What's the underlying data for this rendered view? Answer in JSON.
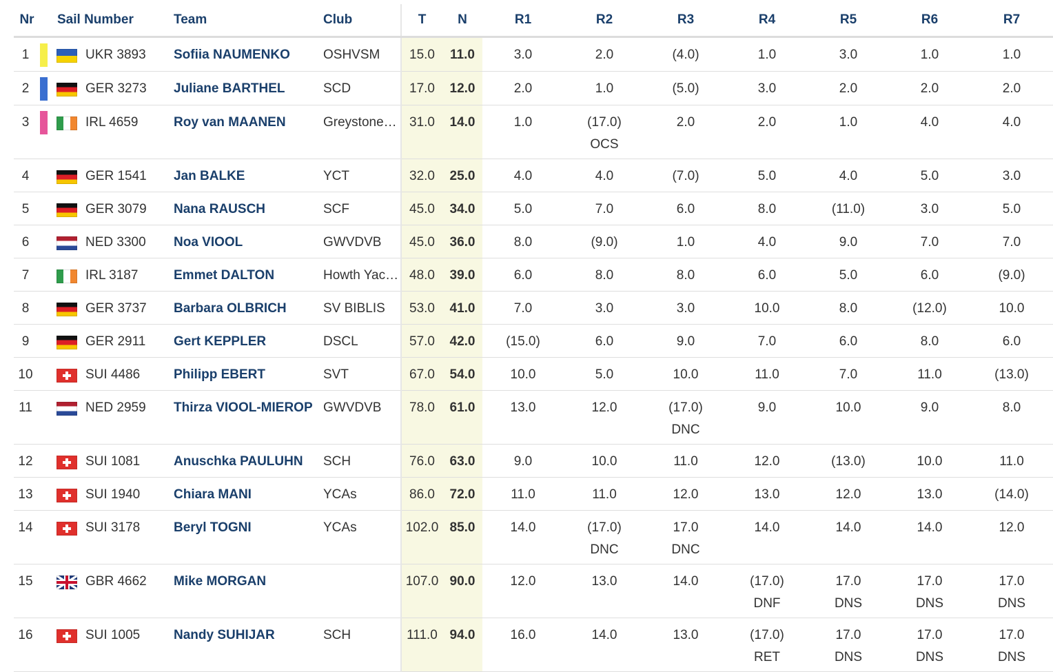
{
  "headers": {
    "nr": "Nr",
    "sail": "Sail Number",
    "team": "Team",
    "club": "Club",
    "total": "T",
    "net": "N",
    "races": [
      "R1",
      "R2",
      "R3",
      "R4",
      "R5",
      "R6",
      "R7"
    ]
  },
  "colors": {
    "yellow": "#f6ef4a",
    "blue": "#3a6fd0",
    "pink": "#e6559a",
    "team_text": "#1a3f6b",
    "highlight": "#f8f8e2"
  },
  "rows": [
    {
      "nr": "1",
      "bar": "#f6ef4a",
      "flag": "ukr",
      "sail": "UKR 3893",
      "team": "Sofiia NAUMENKO",
      "club": "OSHVSM",
      "total": "15.0",
      "net": "11.0",
      "races": [
        {
          "v": "3.0"
        },
        {
          "v": "2.0"
        },
        {
          "v": "(4.0)"
        },
        {
          "v": "1.0"
        },
        {
          "v": "3.0"
        },
        {
          "v": "1.0"
        },
        {
          "v": "1.0"
        }
      ]
    },
    {
      "nr": "2",
      "bar": "#3a6fd0",
      "flag": "ger",
      "sail": "GER 3273",
      "team": "Juliane BARTHEL",
      "club": "SCD",
      "total": "17.0",
      "net": "12.0",
      "races": [
        {
          "v": "2.0"
        },
        {
          "v": "1.0"
        },
        {
          "v": "(5.0)"
        },
        {
          "v": "3.0"
        },
        {
          "v": "2.0"
        },
        {
          "v": "2.0"
        },
        {
          "v": "2.0"
        }
      ]
    },
    {
      "nr": "3",
      "bar": "#e6559a",
      "flag": "irl",
      "sail": "IRL 4659",
      "team": "Roy van MAANEN",
      "club": "Greystones Sailing Club",
      "total": "31.0",
      "net": "14.0",
      "races": [
        {
          "v": "1.0"
        },
        {
          "v": "(17.0)",
          "c": "OCS"
        },
        {
          "v": "2.0"
        },
        {
          "v": "2.0"
        },
        {
          "v": "1.0"
        },
        {
          "v": "4.0"
        },
        {
          "v": "4.0"
        }
      ]
    },
    {
      "nr": "4",
      "bar": "",
      "flag": "ger",
      "sail": "GER 1541",
      "team": "Jan BALKE",
      "club": "YCT",
      "total": "32.0",
      "net": "25.0",
      "races": [
        {
          "v": "4.0"
        },
        {
          "v": "4.0"
        },
        {
          "v": "(7.0)"
        },
        {
          "v": "5.0"
        },
        {
          "v": "4.0"
        },
        {
          "v": "5.0"
        },
        {
          "v": "3.0"
        }
      ]
    },
    {
      "nr": "5",
      "bar": "",
      "flag": "ger",
      "sail": "GER 3079",
      "team": "Nana RAUSCH",
      "club": "SCF",
      "total": "45.0",
      "net": "34.0",
      "races": [
        {
          "v": "5.0"
        },
        {
          "v": "7.0"
        },
        {
          "v": "6.0"
        },
        {
          "v": "8.0"
        },
        {
          "v": "(11.0)"
        },
        {
          "v": "3.0"
        },
        {
          "v": "5.0"
        }
      ]
    },
    {
      "nr": "6",
      "bar": "",
      "flag": "ned",
      "sail": "NED 3300",
      "team": "Noa VIOOL",
      "club": "GWVDVB",
      "total": "45.0",
      "net": "36.0",
      "races": [
        {
          "v": "8.0"
        },
        {
          "v": "(9.0)"
        },
        {
          "v": "1.0"
        },
        {
          "v": "4.0"
        },
        {
          "v": "9.0"
        },
        {
          "v": "7.0"
        },
        {
          "v": "7.0"
        }
      ]
    },
    {
      "nr": "7",
      "bar": "",
      "flag": "irl",
      "sail": "IRL 3187",
      "team": "Emmet DALTON",
      "club": "Howth Yacht Club",
      "total": "48.0",
      "net": "39.0",
      "races": [
        {
          "v": "6.0"
        },
        {
          "v": "8.0"
        },
        {
          "v": "8.0"
        },
        {
          "v": "6.0"
        },
        {
          "v": "5.0"
        },
        {
          "v": "6.0"
        },
        {
          "v": "(9.0)"
        }
      ]
    },
    {
      "nr": "8",
      "bar": "",
      "flag": "ger",
      "sail": "GER 3737",
      "team": "Barbara OLBRICH",
      "club": "SV BIBLIS",
      "total": "53.0",
      "net": "41.0",
      "races": [
        {
          "v": "7.0"
        },
        {
          "v": "3.0"
        },
        {
          "v": "3.0"
        },
        {
          "v": "10.0"
        },
        {
          "v": "8.0"
        },
        {
          "v": "(12.0)"
        },
        {
          "v": "10.0"
        }
      ]
    },
    {
      "nr": "9",
      "bar": "",
      "flag": "ger",
      "sail": "GER 2911",
      "team": "Gert KEPPLER",
      "club": "DSCL",
      "total": "57.0",
      "net": "42.0",
      "races": [
        {
          "v": "(15.0)"
        },
        {
          "v": "6.0"
        },
        {
          "v": "9.0"
        },
        {
          "v": "7.0"
        },
        {
          "v": "6.0"
        },
        {
          "v": "8.0"
        },
        {
          "v": "6.0"
        }
      ]
    },
    {
      "nr": "10",
      "bar": "",
      "flag": "sui",
      "sail": "SUI 4486",
      "team": "Philipp EBERT",
      "club": "SVT",
      "total": "67.0",
      "net": "54.0",
      "races": [
        {
          "v": "10.0"
        },
        {
          "v": "5.0"
        },
        {
          "v": "10.0"
        },
        {
          "v": "11.0"
        },
        {
          "v": "7.0"
        },
        {
          "v": "11.0"
        },
        {
          "v": "(13.0)"
        }
      ]
    },
    {
      "nr": "11",
      "bar": "",
      "flag": "ned",
      "sail": "NED 2959",
      "team": "Thirza VIOOL-MIEROP",
      "club": "GWVDVB",
      "total": "78.0",
      "net": "61.0",
      "races": [
        {
          "v": "13.0"
        },
        {
          "v": "12.0"
        },
        {
          "v": "(17.0)",
          "c": "DNC"
        },
        {
          "v": "9.0"
        },
        {
          "v": "10.0"
        },
        {
          "v": "9.0"
        },
        {
          "v": "8.0"
        }
      ]
    },
    {
      "nr": "12",
      "bar": "",
      "flag": "sui",
      "sail": "SUI 1081",
      "team": "Anuschka PAULUHN",
      "club": "SCH",
      "total": "76.0",
      "net": "63.0",
      "races": [
        {
          "v": "9.0"
        },
        {
          "v": "10.0"
        },
        {
          "v": "11.0"
        },
        {
          "v": "12.0"
        },
        {
          "v": "(13.0)"
        },
        {
          "v": "10.0"
        },
        {
          "v": "11.0"
        }
      ]
    },
    {
      "nr": "13",
      "bar": "",
      "flag": "sui",
      "sail": "SUI 1940",
      "team": "Chiara MANI",
      "club": "YCAs",
      "total": "86.0",
      "net": "72.0",
      "races": [
        {
          "v": "11.0"
        },
        {
          "v": "11.0"
        },
        {
          "v": "12.0"
        },
        {
          "v": "13.0"
        },
        {
          "v": "12.0"
        },
        {
          "v": "13.0"
        },
        {
          "v": "(14.0)"
        }
      ]
    },
    {
      "nr": "14",
      "bar": "",
      "flag": "sui",
      "sail": "SUI 3178",
      "team": "Beryl TOGNI",
      "club": "YCAs",
      "total": "102.0",
      "net": "85.0",
      "races": [
        {
          "v": "14.0"
        },
        {
          "v": "(17.0)",
          "c": "DNC"
        },
        {
          "v": "17.0",
          "c": "DNC"
        },
        {
          "v": "14.0"
        },
        {
          "v": "14.0"
        },
        {
          "v": "14.0"
        },
        {
          "v": "12.0"
        }
      ]
    },
    {
      "nr": "15",
      "bar": "",
      "flag": "gbr",
      "sail": "GBR 4662",
      "team": "Mike MORGAN",
      "club": "",
      "total": "107.0",
      "net": "90.0",
      "races": [
        {
          "v": "12.0"
        },
        {
          "v": "13.0"
        },
        {
          "v": "14.0"
        },
        {
          "v": "(17.0)",
          "c": "DNF"
        },
        {
          "v": "17.0",
          "c": "DNS"
        },
        {
          "v": "17.0",
          "c": "DNS"
        },
        {
          "v": "17.0",
          "c": "DNS"
        }
      ]
    },
    {
      "nr": "16",
      "bar": "",
      "flag": "sui",
      "sail": "SUI 1005",
      "team": "Nandy SUHIJAR",
      "club": "SCH",
      "total": "111.0",
      "net": "94.0",
      "races": [
        {
          "v": "16.0"
        },
        {
          "v": "14.0"
        },
        {
          "v": "13.0"
        },
        {
          "v": "(17.0)",
          "c": "RET"
        },
        {
          "v": "17.0",
          "c": "DNS"
        },
        {
          "v": "17.0",
          "c": "DNS"
        },
        {
          "v": "17.0",
          "c": "DNS"
        }
      ]
    }
  ]
}
